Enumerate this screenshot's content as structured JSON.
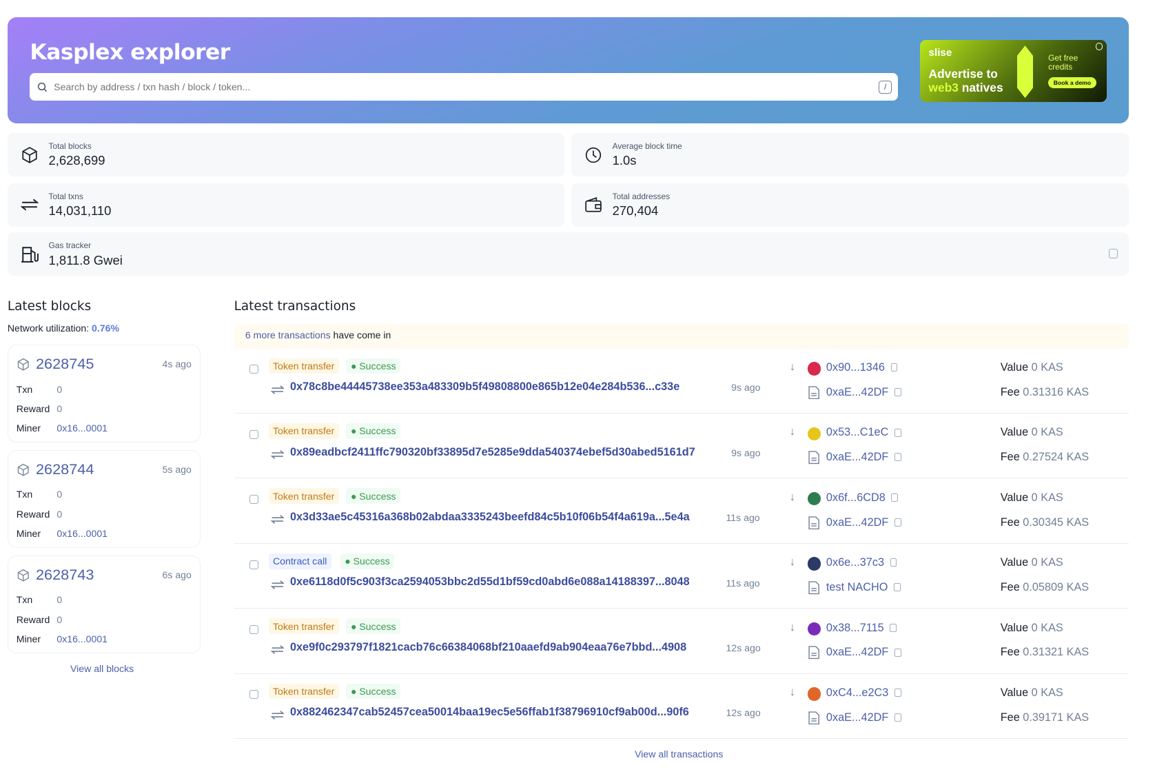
{
  "header": {
    "title": "Kasplex explorer",
    "search_placeholder": "Search by address / txn hash / block / token...",
    "shortcut": "/"
  },
  "ad": {
    "brand": "slise",
    "headline1": "Advertise to",
    "headline2a": "web3",
    "headline2b": " natives",
    "side": "Get free credits",
    "cta": "Book a demo"
  },
  "stats": {
    "total_blocks": {
      "label": "Total blocks",
      "value": "2,628,699"
    },
    "avg_block_time": {
      "label": "Average block time",
      "value": "1.0s"
    },
    "total_txns": {
      "label": "Total txns",
      "value": "14,031,110"
    },
    "total_addresses": {
      "label": "Total addresses",
      "value": "270,404"
    },
    "gas_tracker": {
      "label": "Gas tracker",
      "value": "1,811.8 Gwei"
    }
  },
  "blocks": {
    "title": "Latest blocks",
    "util_label": "Network utilization: ",
    "util_value": "0.76%",
    "view_all": "View all blocks",
    "labels": {
      "txn": "Txn",
      "reward": "Reward",
      "miner": "Miner"
    },
    "items": [
      {
        "number": "2628745",
        "age": "4s ago",
        "txn": "0",
        "reward": "0",
        "miner": "0x16...0001"
      },
      {
        "number": "2628744",
        "age": "5s ago",
        "txn": "0",
        "reward": "0",
        "miner": "0x16...0001"
      },
      {
        "number": "2628743",
        "age": "6s ago",
        "txn": "0",
        "reward": "0",
        "miner": "0x16...0001"
      }
    ]
  },
  "txs": {
    "title": "Latest transactions",
    "banner_link": "6 more transactions",
    "banner_text": " have come in",
    "view_all": "View all transactions",
    "value_label": "Value",
    "fee_label": "Fee",
    "items": [
      {
        "type": "Token transfer",
        "kind": "tt",
        "status": "Success",
        "hash": "0x78c8be44445738ee353a483309b5f49808800e865b12e04e284b536...c33e",
        "age": "9s ago",
        "from": "0x90...1346",
        "to": "0xaE...42DF",
        "value": "0 KAS",
        "fee": "0.31316 KAS",
        "avatar": "#d9294b"
      },
      {
        "type": "Token transfer",
        "kind": "tt",
        "status": "Success",
        "hash": "0x89eadbcf2411ffc790320bf33895d7e5285e9dda540374ebef5d30abed5161d7",
        "age": "9s ago",
        "from": "0x53...C1eC",
        "to": "0xaE...42DF",
        "value": "0 KAS",
        "fee": "0.27524 KAS",
        "avatar": "#e6c619"
      },
      {
        "type": "Token transfer",
        "kind": "tt",
        "status": "Success",
        "hash": "0x3d33ae5c45316a368b02abdaa3335243beefd84c5b10f06b54f4a619a...5e4a",
        "age": "11s ago",
        "from": "0x6f...6CD8",
        "to": "0xaE...42DF",
        "value": "0 KAS",
        "fee": "0.30345 KAS",
        "avatar": "#2e7d4f"
      },
      {
        "type": "Contract call",
        "kind": "cc",
        "status": "Success",
        "hash": "0xe6118d0f5c903f3ca2594053bbc2d55d1bf59cd0abd6e088a14188397...8048",
        "age": "11s ago",
        "from": "0x6e...37c3",
        "to": "test NACHO",
        "value": "0 KAS",
        "fee": "0.05809 KAS",
        "avatar": "#2b3a67"
      },
      {
        "type": "Token transfer",
        "kind": "tt",
        "status": "Success",
        "hash": "0xe9f0c293797f1821cacb76c66384068bf210aaefd9ab904eaa76e7bbd...4908",
        "age": "12s ago",
        "from": "0x38...7115",
        "to": "0xaE...42DF",
        "value": "0 KAS",
        "fee": "0.31321 KAS",
        "avatar": "#7a2bb8"
      },
      {
        "type": "Token transfer",
        "kind": "tt",
        "status": "Success",
        "hash": "0x882462347cab52457cea50014baa19ec5e56ffab1f38796910cf9ab00d...90f6",
        "age": "12s ago",
        "from": "0xC4...e2C3",
        "to": "0xaE...42DF",
        "value": "0 KAS",
        "fee": "0.39171 KAS",
        "avatar": "#e0662a"
      }
    ]
  }
}
